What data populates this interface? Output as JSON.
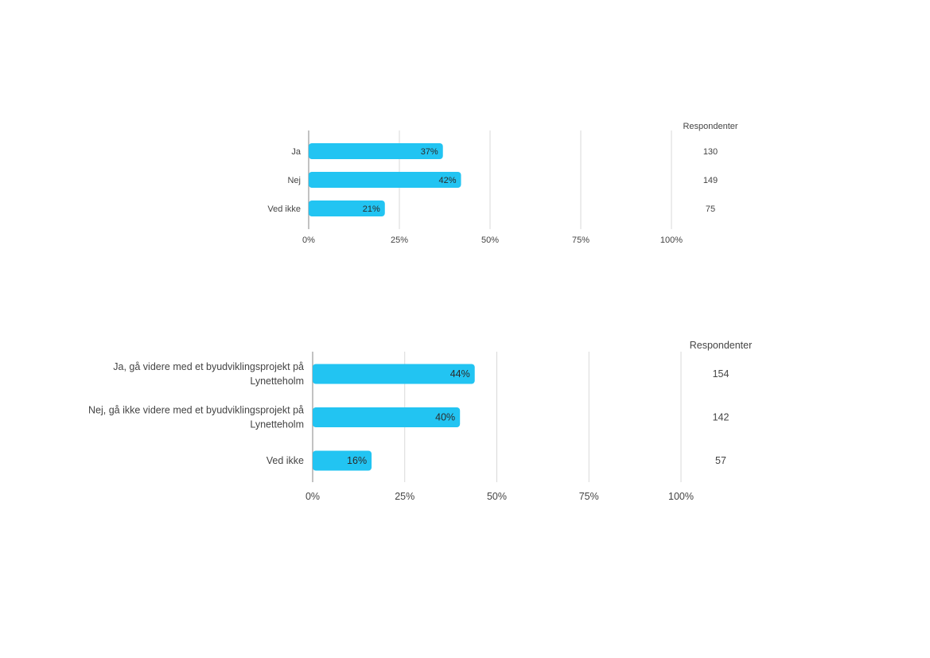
{
  "chart_data": [
    {
      "type": "bar",
      "orientation": "horizontal",
      "categories": [
        "Ja",
        "Nej",
        "Ved ikke"
      ],
      "values": [
        37,
        42,
        21
      ],
      "value_labels": [
        "37%",
        "42%",
        "21%"
      ],
      "respondents_header": "Respondenter",
      "respondents": [
        "130",
        "149",
        "75"
      ],
      "xlim": [
        0,
        100
      ],
      "ticks": [
        "0%",
        "25%",
        "50%",
        "75%",
        "100%"
      ],
      "grid": true,
      "bar_color": "#22C4F2"
    },
    {
      "type": "bar",
      "orientation": "horizontal",
      "categories": [
        [
          "Ja, gå videre med et byudviklingsprojekt på",
          "Lynetteholm"
        ],
        [
          "Nej, gå ikke videre med et byudviklingsprojekt på",
          "Lynetteholm"
        ],
        [
          "Ved ikke"
        ]
      ],
      "values": [
        44,
        40,
        16
      ],
      "value_labels": [
        "44%",
        "40%",
        "16%"
      ],
      "respondents_header": "Respondenter",
      "respondents": [
        "154",
        "142",
        "57"
      ],
      "xlim": [
        0,
        100
      ],
      "ticks": [
        "0%",
        "25%",
        "50%",
        "75%",
        "100%"
      ],
      "grid": true,
      "bar_color": "#22C4F2"
    }
  ]
}
